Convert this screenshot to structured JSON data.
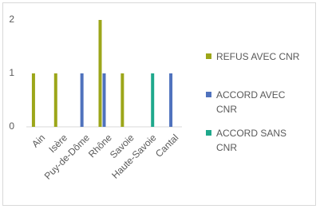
{
  "chart_data": {
    "type": "bar",
    "categories": [
      "Ain",
      "Isère",
      "Puy-de-Dôme",
      "Rhône",
      "Savoie",
      "Haute-Savoie",
      "Cantal"
    ],
    "series": [
      {
        "name": "REFUS AVEC CNR",
        "color": "#9ca619",
        "values": [
          1,
          1,
          0,
          2,
          1,
          0,
          0
        ]
      },
      {
        "name": "ACCORD AVEC CNR",
        "color": "#4f72bd",
        "values": [
          0,
          0,
          1,
          1,
          0,
          0,
          1
        ]
      },
      {
        "name": "ACCORD SANS CNR",
        "color": "#1ea88c",
        "values": [
          0,
          0,
          0,
          0,
          0,
          1,
          0
        ]
      }
    ],
    "ylim": [
      0,
      2
    ],
    "yticks": [
      0,
      1,
      2
    ],
    "grid": false,
    "legend": "right"
  }
}
